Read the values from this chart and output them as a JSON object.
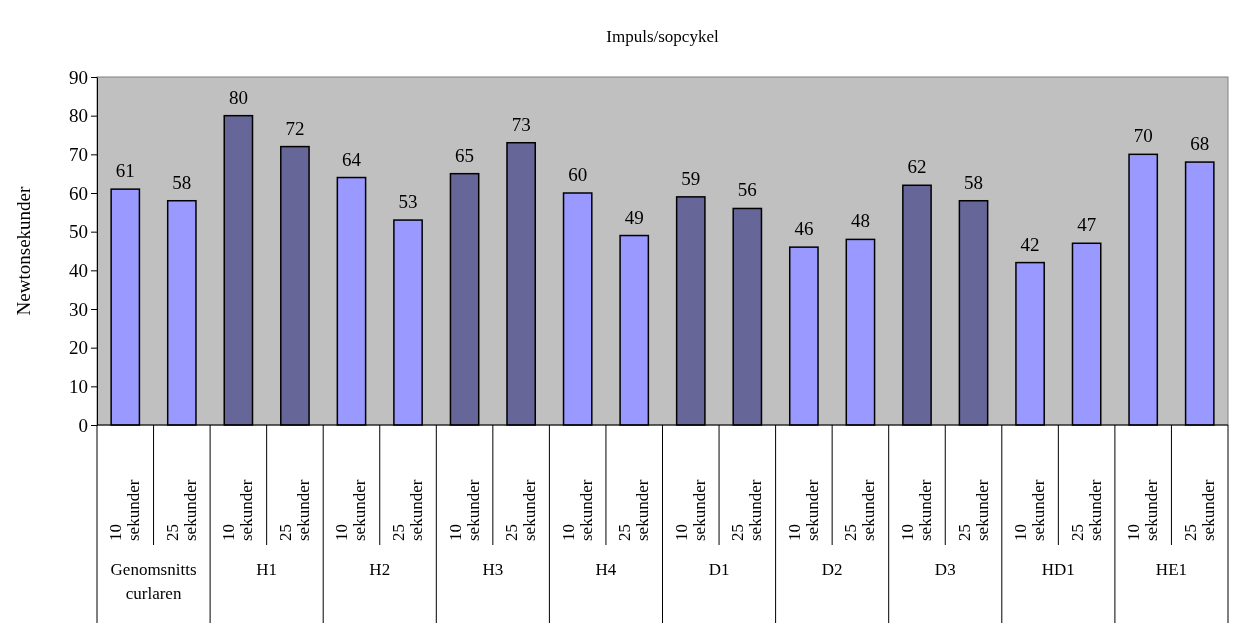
{
  "chart_data": {
    "type": "bar",
    "title": "Impuls/sopcykel",
    "ylabel": "Newtonsekunder",
    "categories": [
      "10 sekunder",
      "25 sekunder",
      "10 sekunder",
      "25 sekunder",
      "10 sekunder",
      "25 sekunder",
      "10 sekunder",
      "25 sekunder",
      "10 sekunder",
      "25 sekunder",
      "10 sekunder",
      "25 sekunder",
      "10 sekunder",
      "25 sekunder",
      "10 sekunder",
      "25 sekunder",
      "10 sekunder",
      "25 sekunder",
      "10 sekunder",
      "25 sekunder"
    ],
    "values": [
      61,
      58,
      80,
      72,
      64,
      53,
      65,
      73,
      60,
      49,
      59,
      56,
      46,
      48,
      62,
      58,
      42,
      47,
      70,
      68
    ],
    "colors": [
      "#9999ff",
      "#9999ff",
      "#666699",
      "#666699",
      "#9999ff",
      "#9999ff",
      "#666699",
      "#666699",
      "#9999ff",
      "#9999ff",
      "#666699",
      "#666699",
      "#9999ff",
      "#9999ff",
      "#666699",
      "#666699",
      "#9999ff",
      "#9999ff",
      "#9999ff",
      "#9999ff"
    ],
    "annotations": [
      "Genomsnitts curlaren",
      "H1",
      "H2",
      "H3",
      "H4",
      "D1",
      "D2",
      "D3",
      "HD1",
      "HE1"
    ],
    "ylim": [
      0,
      90
    ],
    "yticks": [
      0,
      10,
      20,
      30,
      40,
      50,
      60,
      70,
      80,
      90
    ],
    "grid": false,
    "data_labels": true
  }
}
